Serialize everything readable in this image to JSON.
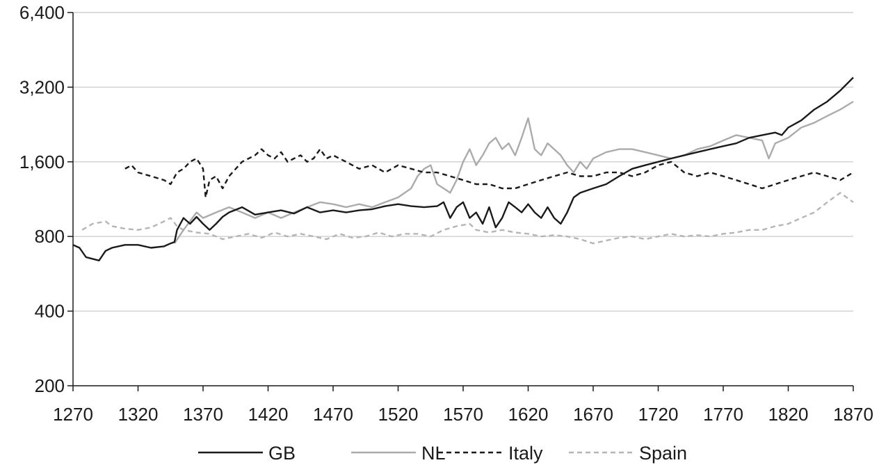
{
  "chart_data": {
    "type": "line",
    "title": "",
    "xlabel": "",
    "ylabel": "",
    "x_range": [
      1270,
      1870
    ],
    "x_ticks": [
      "1270",
      "1320",
      "1370",
      "1420",
      "1470",
      "1520",
      "1570",
      "1620",
      "1670",
      "1720",
      "1770",
      "1820",
      "1870"
    ],
    "y_scale": "log2",
    "y_range": [
      200,
      6400
    ],
    "y_ticks": [
      {
        "value": 200,
        "label": "200"
      },
      {
        "value": 400,
        "label": "400"
      },
      {
        "value": 800,
        "label": "800"
      },
      {
        "value": 1600,
        "label": "1,600"
      },
      {
        "value": 3200,
        "label": "3,200"
      },
      {
        "value": 6400,
        "label": "6,400"
      }
    ],
    "grid": "horizontal",
    "legend_position": "bottom",
    "series": [
      {
        "name": "GB",
        "color": "#1a1a1a",
        "dash": "solid",
        "points": [
          [
            1270,
            740
          ],
          [
            1275,
            720
          ],
          [
            1280,
            660
          ],
          [
            1285,
            650
          ],
          [
            1290,
            640
          ],
          [
            1295,
            700
          ],
          [
            1300,
            720
          ],
          [
            1310,
            740
          ],
          [
            1320,
            740
          ],
          [
            1330,
            720
          ],
          [
            1340,
            730
          ],
          [
            1345,
            750
          ],
          [
            1348,
            760
          ],
          [
            1350,
            850
          ],
          [
            1355,
            950
          ],
          [
            1360,
            900
          ],
          [
            1365,
            960
          ],
          [
            1370,
            900
          ],
          [
            1375,
            850
          ],
          [
            1380,
            900
          ],
          [
            1385,
            960
          ],
          [
            1390,
            1000
          ],
          [
            1400,
            1050
          ],
          [
            1410,
            980
          ],
          [
            1420,
            1000
          ],
          [
            1430,
            1020
          ],
          [
            1440,
            990
          ],
          [
            1450,
            1050
          ],
          [
            1460,
            1000
          ],
          [
            1470,
            1020
          ],
          [
            1480,
            1000
          ],
          [
            1490,
            1020
          ],
          [
            1500,
            1030
          ],
          [
            1510,
            1060
          ],
          [
            1520,
            1080
          ],
          [
            1530,
            1060
          ],
          [
            1540,
            1050
          ],
          [
            1550,
            1060
          ],
          [
            1555,
            1100
          ],
          [
            1560,
            950
          ],
          [
            1565,
            1050
          ],
          [
            1570,
            1100
          ],
          [
            1575,
            950
          ],
          [
            1580,
            1000
          ],
          [
            1585,
            900
          ],
          [
            1590,
            1050
          ],
          [
            1595,
            870
          ],
          [
            1600,
            950
          ],
          [
            1605,
            1100
          ],
          [
            1610,
            1050
          ],
          [
            1615,
            1000
          ],
          [
            1620,
            1080
          ],
          [
            1625,
            1000
          ],
          [
            1630,
            950
          ],
          [
            1635,
            1050
          ],
          [
            1640,
            950
          ],
          [
            1645,
            900
          ],
          [
            1650,
            1000
          ],
          [
            1655,
            1150
          ],
          [
            1660,
            1200
          ],
          [
            1670,
            1250
          ],
          [
            1680,
            1300
          ],
          [
            1690,
            1400
          ],
          [
            1700,
            1500
          ],
          [
            1710,
            1550
          ],
          [
            1720,
            1600
          ],
          [
            1730,
            1650
          ],
          [
            1740,
            1700
          ],
          [
            1750,
            1750
          ],
          [
            1760,
            1800
          ],
          [
            1770,
            1850
          ],
          [
            1780,
            1900
          ],
          [
            1790,
            2000
          ],
          [
            1800,
            2050
          ],
          [
            1810,
            2100
          ],
          [
            1815,
            2050
          ],
          [
            1820,
            2200
          ],
          [
            1830,
            2350
          ],
          [
            1840,
            2600
          ],
          [
            1850,
            2800
          ],
          [
            1860,
            3100
          ],
          [
            1870,
            3500
          ]
        ]
      },
      {
        "name": "NL",
        "color": "#ababab",
        "dash": "solid",
        "points": [
          [
            1348,
            750
          ],
          [
            1355,
            850
          ],
          [
            1365,
            1000
          ],
          [
            1370,
            950
          ],
          [
            1380,
            1000
          ],
          [
            1390,
            1050
          ],
          [
            1400,
            1000
          ],
          [
            1410,
            950
          ],
          [
            1420,
            1000
          ],
          [
            1430,
            950
          ],
          [
            1440,
            1000
          ],
          [
            1450,
            1050
          ],
          [
            1460,
            1100
          ],
          [
            1470,
            1080
          ],
          [
            1480,
            1050
          ],
          [
            1490,
            1080
          ],
          [
            1500,
            1050
          ],
          [
            1510,
            1100
          ],
          [
            1520,
            1150
          ],
          [
            1530,
            1250
          ],
          [
            1535,
            1400
          ],
          [
            1540,
            1500
          ],
          [
            1545,
            1550
          ],
          [
            1550,
            1300
          ],
          [
            1555,
            1250
          ],
          [
            1560,
            1200
          ],
          [
            1565,
            1350
          ],
          [
            1570,
            1600
          ],
          [
            1575,
            1800
          ],
          [
            1580,
            1550
          ],
          [
            1585,
            1700
          ],
          [
            1590,
            1900
          ],
          [
            1595,
            2000
          ],
          [
            1600,
            1800
          ],
          [
            1605,
            1900
          ],
          [
            1610,
            1700
          ],
          [
            1615,
            2000
          ],
          [
            1620,
            2400
          ],
          [
            1625,
            1800
          ],
          [
            1630,
            1700
          ],
          [
            1635,
            1900
          ],
          [
            1640,
            1800
          ],
          [
            1645,
            1700
          ],
          [
            1650,
            1550
          ],
          [
            1655,
            1450
          ],
          [
            1660,
            1600
          ],
          [
            1665,
            1500
          ],
          [
            1670,
            1650
          ],
          [
            1675,
            1700
          ],
          [
            1680,
            1750
          ],
          [
            1690,
            1800
          ],
          [
            1700,
            1800
          ],
          [
            1710,
            1750
          ],
          [
            1720,
            1700
          ],
          [
            1730,
            1650
          ],
          [
            1740,
            1700
          ],
          [
            1750,
            1800
          ],
          [
            1760,
            1850
          ],
          [
            1770,
            1950
          ],
          [
            1780,
            2050
          ],
          [
            1790,
            2000
          ],
          [
            1800,
            1950
          ],
          [
            1805,
            1650
          ],
          [
            1810,
            1900
          ],
          [
            1820,
            2000
          ],
          [
            1830,
            2200
          ],
          [
            1840,
            2300
          ],
          [
            1850,
            2450
          ],
          [
            1860,
            2600
          ],
          [
            1870,
            2800
          ]
        ]
      },
      {
        "name": "Italy",
        "color": "#1a1a1a",
        "dash": "dashed",
        "points": [
          [
            1310,
            1500
          ],
          [
            1315,
            1550
          ],
          [
            1320,
            1450
          ],
          [
            1330,
            1400
          ],
          [
            1340,
            1350
          ],
          [
            1345,
            1300
          ],
          [
            1350,
            1450
          ],
          [
            1355,
            1500
          ],
          [
            1360,
            1600
          ],
          [
            1365,
            1650
          ],
          [
            1370,
            1500
          ],
          [
            1372,
            1150
          ],
          [
            1375,
            1350
          ],
          [
            1380,
            1400
          ],
          [
            1385,
            1250
          ],
          [
            1390,
            1400
          ],
          [
            1400,
            1600
          ],
          [
            1410,
            1700
          ],
          [
            1415,
            1800
          ],
          [
            1420,
            1700
          ],
          [
            1425,
            1650
          ],
          [
            1430,
            1750
          ],
          [
            1435,
            1600
          ],
          [
            1440,
            1650
          ],
          [
            1445,
            1700
          ],
          [
            1450,
            1600
          ],
          [
            1455,
            1650
          ],
          [
            1460,
            1800
          ],
          [
            1465,
            1650
          ],
          [
            1470,
            1700
          ],
          [
            1480,
            1600
          ],
          [
            1490,
            1500
          ],
          [
            1500,
            1550
          ],
          [
            1510,
            1450
          ],
          [
            1520,
            1550
          ],
          [
            1530,
            1500
          ],
          [
            1540,
            1450
          ],
          [
            1550,
            1450
          ],
          [
            1560,
            1400
          ],
          [
            1570,
            1350
          ],
          [
            1580,
            1300
          ],
          [
            1590,
            1300
          ],
          [
            1600,
            1250
          ],
          [
            1610,
            1250
          ],
          [
            1620,
            1300
          ],
          [
            1630,
            1350
          ],
          [
            1640,
            1400
          ],
          [
            1650,
            1450
          ],
          [
            1660,
            1400
          ],
          [
            1670,
            1400
          ],
          [
            1680,
            1450
          ],
          [
            1690,
            1450
          ],
          [
            1700,
            1400
          ],
          [
            1710,
            1450
          ],
          [
            1720,
            1550
          ],
          [
            1730,
            1600
          ],
          [
            1740,
            1450
          ],
          [
            1750,
            1400
          ],
          [
            1760,
            1450
          ],
          [
            1770,
            1400
          ],
          [
            1780,
            1350
          ],
          [
            1790,
            1300
          ],
          [
            1800,
            1250
          ],
          [
            1810,
            1300
          ],
          [
            1820,
            1350
          ],
          [
            1830,
            1400
          ],
          [
            1840,
            1450
          ],
          [
            1850,
            1400
          ],
          [
            1860,
            1350
          ],
          [
            1870,
            1450
          ]
        ]
      },
      {
        "name": "Spain",
        "color": "#b5b5b5",
        "dash": "dashed",
        "points": [
          [
            1277,
            850
          ],
          [
            1285,
            900
          ],
          [
            1295,
            920
          ],
          [
            1300,
            880
          ],
          [
            1310,
            860
          ],
          [
            1320,
            850
          ],
          [
            1330,
            870
          ],
          [
            1340,
            920
          ],
          [
            1345,
            950
          ],
          [
            1350,
            880
          ],
          [
            1355,
            850
          ],
          [
            1365,
            830
          ],
          [
            1375,
            820
          ],
          [
            1385,
            780
          ],
          [
            1395,
            800
          ],
          [
            1405,
            820
          ],
          [
            1415,
            790
          ],
          [
            1425,
            830
          ],
          [
            1435,
            800
          ],
          [
            1445,
            820
          ],
          [
            1455,
            800
          ],
          [
            1465,
            780
          ],
          [
            1475,
            820
          ],
          [
            1485,
            790
          ],
          [
            1495,
            800
          ],
          [
            1505,
            830
          ],
          [
            1515,
            800
          ],
          [
            1525,
            820
          ],
          [
            1535,
            820
          ],
          [
            1545,
            800
          ],
          [
            1555,
            850
          ],
          [
            1565,
            880
          ],
          [
            1575,
            900
          ],
          [
            1580,
            850
          ],
          [
            1590,
            830
          ],
          [
            1600,
            850
          ],
          [
            1610,
            830
          ],
          [
            1620,
            820
          ],
          [
            1630,
            800
          ],
          [
            1640,
            810
          ],
          [
            1650,
            800
          ],
          [
            1660,
            780
          ],
          [
            1670,
            750
          ],
          [
            1680,
            770
          ],
          [
            1690,
            790
          ],
          [
            1700,
            800
          ],
          [
            1710,
            780
          ],
          [
            1720,
            800
          ],
          [
            1730,
            820
          ],
          [
            1740,
            800
          ],
          [
            1750,
            810
          ],
          [
            1760,
            800
          ],
          [
            1770,
            820
          ],
          [
            1780,
            830
          ],
          [
            1790,
            850
          ],
          [
            1800,
            850
          ],
          [
            1810,
            880
          ],
          [
            1820,
            900
          ],
          [
            1830,
            950
          ],
          [
            1840,
            1000
          ],
          [
            1850,
            1100
          ],
          [
            1860,
            1200
          ],
          [
            1870,
            1100
          ]
        ]
      }
    ]
  }
}
